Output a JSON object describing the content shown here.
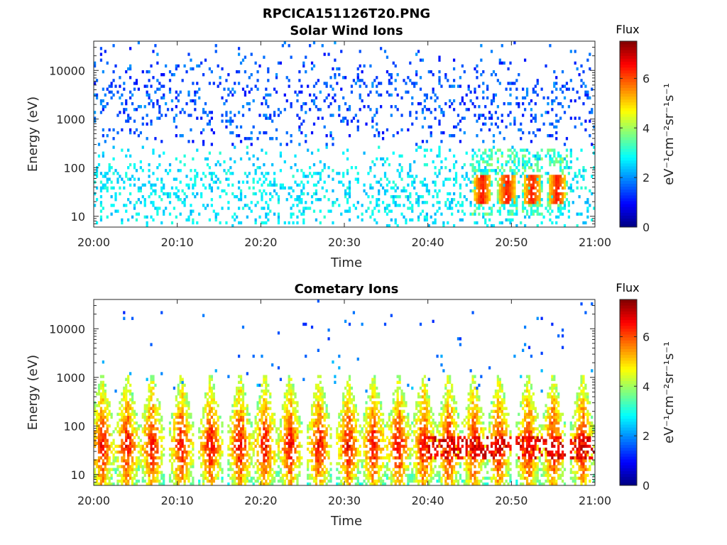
{
  "figure": {
    "title": "RPCICA151126T20.PNG"
  },
  "chart_data": [
    {
      "type": "heatmap",
      "title": "Solar Wind Ions",
      "xlabel": "Time",
      "ylabel": "Energy (eV)",
      "x_ticks": [
        "20:00",
        "20:10",
        "20:20",
        "20:30",
        "20:40",
        "20:50",
        "21:00"
      ],
      "xlim_minutes": [
        0,
        60
      ],
      "y_scale": "log",
      "y_ticks": [
        "10",
        "100",
        "1000",
        "10000"
      ],
      "ylim": [
        6,
        40000
      ],
      "colorbar": {
        "title": "Flux",
        "label": "eV⁻¹cm⁻²sr⁻¹s⁻¹",
        "ticks": [
          "0",
          "2",
          "4",
          "6"
        ],
        "range": [
          0,
          7.5
        ],
        "colormap": "jet"
      },
      "background": "#ffffff",
      "description_of_features": {
        "sparse_high_energy_blue": [
          200,
          30000
        ],
        "intermittent_cyan_green_low_energy": [
          6,
          300
        ],
        "enhanced_orange_bursts_minutes": [
          46.5,
          49.5,
          52.5,
          55.5
        ],
        "enhanced_energy_range_eV": [
          25,
          45
        ]
      }
    },
    {
      "type": "heatmap",
      "title": "Cometary Ions",
      "xlabel": "Time",
      "ylabel": "Energy (eV)",
      "x_ticks": [
        "20:00",
        "20:10",
        "20:20",
        "20:30",
        "20:40",
        "20:50",
        "21:00"
      ],
      "xlim_minutes": [
        0,
        60
      ],
      "y_scale": "log",
      "y_ticks": [
        "10",
        "100",
        "1000",
        "10000"
      ],
      "ylim": [
        6,
        40000
      ],
      "colorbar": {
        "title": "Flux",
        "label": "eV⁻¹cm⁻²sr⁻¹s⁻¹",
        "ticks": [
          "0",
          "2",
          "4",
          "6"
        ],
        "range": [
          0,
          7.5
        ],
        "colormap": "jet"
      },
      "background": "#ffffff",
      "burst_times_minutes": [
        1,
        4,
        7,
        10.5,
        14,
        17.5,
        20.5,
        23.5,
        27,
        30.5,
        33.5,
        36.5,
        39.5,
        42.5,
        45.5,
        48.5,
        52,
        55,
        58.5
      ],
      "burst_energy_range_eV": [
        6,
        1500
      ],
      "peak_energy_eV": 40
    }
  ]
}
